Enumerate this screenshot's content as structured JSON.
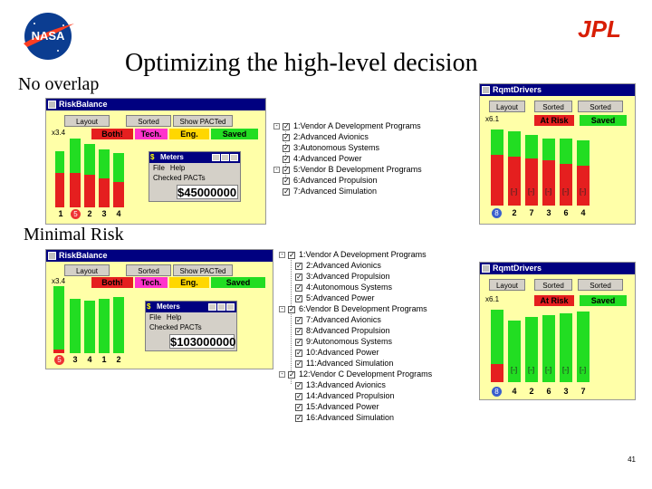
{
  "slide": {
    "title": "Optimizing the high-level decision",
    "label_no_overlap": "No overlap",
    "label_minimal_risk": "Minimal Risk",
    "page_number": "41",
    "logo_nasa": "NASA",
    "logo_jpl": "JPL"
  },
  "top": {
    "risk_balance": {
      "window_title": "RiskBalance",
      "layout_btn": "Layout",
      "sorted_btn": "Sorted",
      "show_pacted": "Show PACTed",
      "scale": "x3.4",
      "headers": [
        "Both!",
        "Tech.",
        "Eng.",
        "Saved"
      ],
      "axis": [
        "1",
        "5",
        "2",
        "3",
        "4"
      ]
    },
    "meters": {
      "title": "Meters",
      "menu_file": "File",
      "menu_help": "Help",
      "checked_label": "Checked PACTs",
      "amount": "$45000000"
    },
    "tree": [
      {
        "text": "1:Vendor A Development Programs",
        "level": 0,
        "expander": "-"
      },
      {
        "text": "2:Advanced Avionics",
        "level": 1
      },
      {
        "text": "3:Autonomous Systems",
        "level": 1
      },
      {
        "text": "4:Advanced Power",
        "level": 1
      },
      {
        "text": "5:Vendor B Development Programs",
        "level": 0,
        "expander": "-"
      },
      {
        "text": "6:Advanced Propulsion",
        "level": 1
      },
      {
        "text": "7:Advanced Simulation",
        "level": 1
      }
    ],
    "rqmt": {
      "window_title": "RqmtDrivers",
      "layout_btn": "Layout",
      "sorted_btn": "Sorted",
      "sorted2_btn": "Sorted",
      "scale": "x6.1",
      "headers": [
        "At Risk",
        "Saved"
      ],
      "axis": [
        "8",
        "2",
        "7",
        "3",
        "6",
        "4"
      ]
    }
  },
  "bottom": {
    "risk_balance": {
      "window_title": "RiskBalance",
      "layout_btn": "Layout",
      "sorted_btn": "Sorted",
      "show_pacted": "Show PACTed",
      "scale": "x3.4",
      "headers": [
        "Both!",
        "Tech.",
        "Eng.",
        "Saved"
      ],
      "axis": [
        "5",
        "3",
        "4",
        "1",
        "2"
      ]
    },
    "meters": {
      "title": "Meters",
      "menu_file": "File",
      "menu_help": "Help",
      "checked_label": "Checked PACTs",
      "amount": "$103000000"
    },
    "tree": [
      {
        "text": "1:Vendor A Development Programs",
        "level": 0,
        "expander": "-"
      },
      {
        "text": "2:Advanced Avionics",
        "level": 1
      },
      {
        "text": "3:Advanced Propulsion",
        "level": 1
      },
      {
        "text": "4:Autonomous Systems",
        "level": 1
      },
      {
        "text": "5:Advanced Power",
        "level": 1
      },
      {
        "text": "6:Vendor B Development Programs",
        "level": 0,
        "expander": "-"
      },
      {
        "text": "7:Advanced Avionics",
        "level": 1
      },
      {
        "text": "8:Advanced Propulsion",
        "level": 1
      },
      {
        "text": "9:Autonomous Systems",
        "level": 1
      },
      {
        "text": "10:Advanced Power",
        "level": 1
      },
      {
        "text": "11:Advanced Simulation",
        "level": 1
      },
      {
        "text": "12:Vendor C Development Programs",
        "level": 0,
        "expander": "-"
      },
      {
        "text": "13:Advanced Avionics",
        "level": 1
      },
      {
        "text": "14:Advanced Propulsion",
        "level": 1
      },
      {
        "text": "15:Advanced Power",
        "level": 1
      },
      {
        "text": "16:Advanced Simulation",
        "level": 1
      }
    ],
    "rqmt": {
      "window_title": "RqmtDrivers",
      "layout_btn": "Layout",
      "sorted_btn": "Sorted",
      "sorted2_btn": "Sorted",
      "scale": "x6.1",
      "headers": [
        "At Risk",
        "Saved"
      ],
      "axis": [
        "8",
        "4",
        "2",
        "6",
        "3",
        "7"
      ]
    }
  },
  "colors": {
    "risk_red": "#e51f1f",
    "saved_green": "#22dd22",
    "tech_magenta": "#ff33cc",
    "eng_yellow": "#ffd700",
    "panel_yellow": "#ffffa8",
    "titlebar_blue": "#000080"
  }
}
